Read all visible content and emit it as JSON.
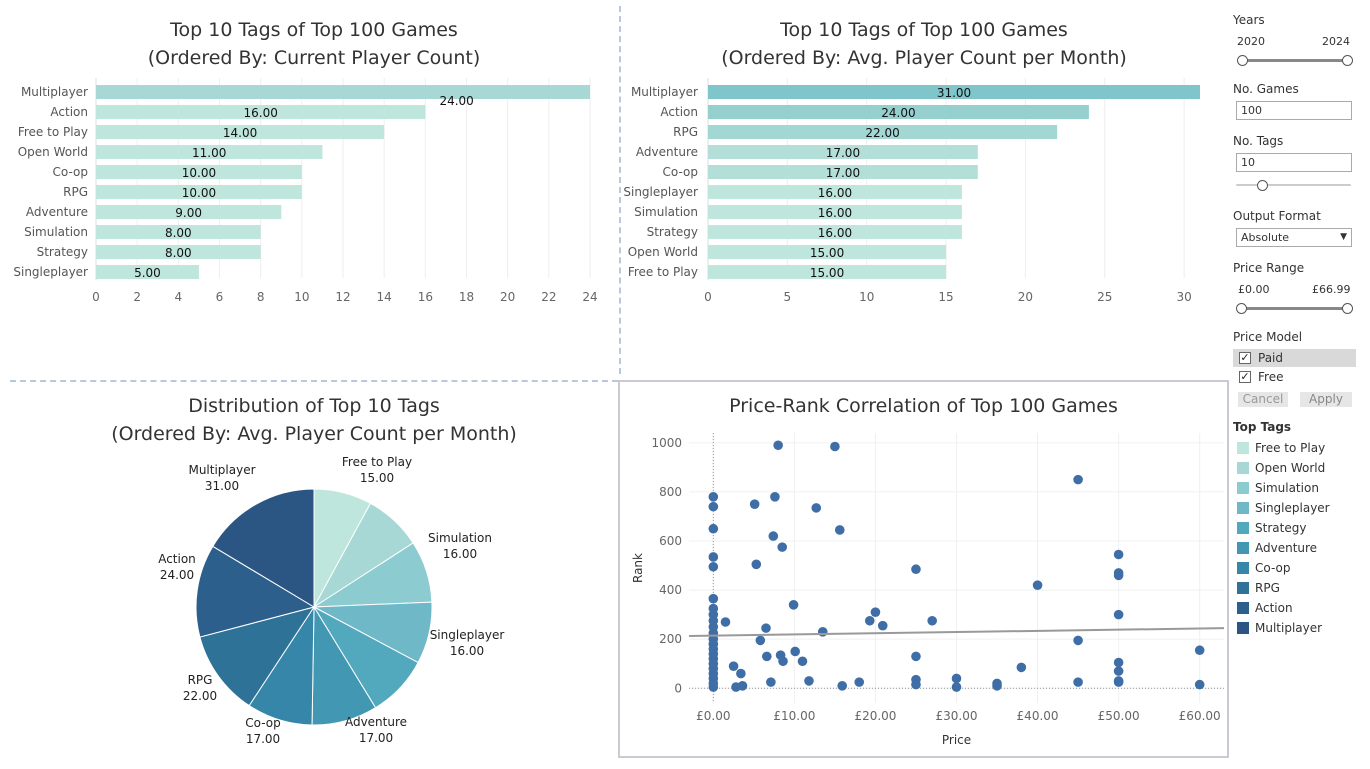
{
  "bar_chart_current": {
    "title_line1": "Top 10 Tags of Top 100 Games",
    "title_line2": "(Ordered By: Current Player Count)"
  },
  "bar_chart_avg": {
    "title_line1": "Top 10 Tags of Top 100 Games",
    "title_line2": "(Ordered By: Avg. Player Count per Month)"
  },
  "pie_chart": {
    "title_line1": "Distribution of Top 10 Tags",
    "title_line2": "(Ordered By: Avg. Player Count per Month)"
  },
  "scatter_chart": {
    "title": "Price-Rank Correlation of Top 100 Games"
  },
  "controls": {
    "years_label": "Years",
    "years_min": "2020",
    "years_max": "2024",
    "no_games_label": "No. Games",
    "no_games_value": "100",
    "no_tags_label": "No. Tags",
    "no_tags_value": "10",
    "no_tags_slider_fraction": 0.2,
    "output_format_label": "Output Format",
    "output_format_value": "Absolute",
    "price_range_label": "Price Range",
    "price_min": "£0.00",
    "price_max": "£66.99",
    "price_model_label": "Price Model",
    "price_model_options": [
      "Paid",
      "Free"
    ],
    "cancel_label": "Cancel",
    "apply_label": "Apply",
    "legend_title": "Top Tags",
    "legend": [
      {
        "label": "Free to Play",
        "color": "#bfe6dc"
      },
      {
        "label": "Open World",
        "color": "#a7d8d6"
      },
      {
        "label": "Simulation",
        "color": "#8ccbd0"
      },
      {
        "label": "Singleplayer",
        "color": "#6fb8c8"
      },
      {
        "label": "Strategy",
        "color": "#52a8bd"
      },
      {
        "label": "Adventure",
        "color": "#4298b2"
      },
      {
        "label": "Co-op",
        "color": "#3586a8"
      },
      {
        "label": "RPG",
        "color": "#2e7298"
      },
      {
        "label": "Action",
        "color": "#2d5f8c"
      },
      {
        "label": "Multiplayer",
        "color": "#2b5583"
      }
    ]
  },
  "chart_data": [
    {
      "type": "bar",
      "orientation": "horizontal",
      "title": "Top 10 Tags of Top 100 Games (Ordered By: Current Player Count)",
      "categories": [
        "Multiplayer",
        "Action",
        "Free to Play",
        "Open World",
        "Co-op",
        "RPG",
        "Adventure",
        "Simulation",
        "Strategy",
        "Singleplayer"
      ],
      "values": [
        24,
        16,
        14,
        11,
        10,
        10,
        9,
        8,
        8,
        5
      ],
      "value_labels": [
        "24.00",
        "16.00",
        "14.00",
        "11.00",
        "10.00",
        "10.00",
        "9.00",
        "8.00",
        "8.00",
        "5.00"
      ],
      "xlim": [
        0,
        24
      ],
      "xticks": [
        "0",
        "2",
        "4",
        "6",
        "8",
        "10",
        "12",
        "14",
        "16",
        "18",
        "20",
        "22",
        "24"
      ],
      "colors": [
        "#a7d8d6",
        "#bfe6dc",
        "#bfe6dc",
        "#bfe6dc",
        "#bfe6dc",
        "#bfe6dc",
        "#bfe6dc",
        "#bfe6dc",
        "#bfe6dc",
        "#bfe6dc"
      ],
      "grid": true
    },
    {
      "type": "bar",
      "orientation": "horizontal",
      "title": "Top 10 Tags of Top 100 Games (Ordered By: Avg. Player Count per Month)",
      "categories": [
        "Multiplayer",
        "Action",
        "RPG",
        "Adventure",
        "Co-op",
        "Singleplayer",
        "Simulation",
        "Strategy",
        "Open World",
        "Free to Play"
      ],
      "values": [
        31,
        24,
        22,
        17,
        17,
        16,
        16,
        16,
        15,
        15
      ],
      "value_labels": [
        "31.00",
        "24.00",
        "22.00",
        "17.00",
        "17.00",
        "16.00",
        "16.00",
        "16.00",
        "15.00",
        "15.00"
      ],
      "xlim": [
        0,
        31
      ],
      "xticks": [
        "0",
        "5",
        "10",
        "15",
        "20",
        "25",
        "30"
      ],
      "colors": [
        "#7fc5ca",
        "#95d0cf",
        "#a3d7d3",
        "#b4dfd8",
        "#b4dfd8",
        "#bfe6dc",
        "#bfe6dc",
        "#bfe6dc",
        "#bfe6dc",
        "#bfe6dc"
      ],
      "grid": true
    },
    {
      "type": "pie",
      "title": "Distribution of Top 10 Tags (Ordered By: Avg. Player Count per Month)",
      "labels": [
        "Free to Play",
        "Simulation",
        "Singleplayer",
        "Adventure",
        "Co-op",
        "RPG",
        "Action",
        "Multiplayer"
      ],
      "values": [
        15,
        16,
        16,
        17,
        17,
        22,
        24,
        31
      ],
      "value_labels": [
        "15.00",
        "16.00",
        "16.00",
        "17.00",
        "17.00",
        "22.00",
        "24.00",
        "31.00"
      ],
      "slices": [
        {
          "tag": "Free to Play",
          "value": 15,
          "color": "#bfe6dc",
          "labeled": true
        },
        {
          "tag": "Open World",
          "value": 15,
          "color": "#a7d8d6",
          "labeled": false
        },
        {
          "tag": "Simulation",
          "value": 16,
          "color": "#8ccbd0",
          "labeled": true
        },
        {
          "tag": "Singleplayer",
          "value": 16,
          "color": "#6fb8c8",
          "labeled": true
        },
        {
          "tag": "Strategy",
          "value": 16,
          "color": "#52a8bd",
          "labeled": false
        },
        {
          "tag": "Adventure",
          "value": 17,
          "color": "#4298b2",
          "labeled": true
        },
        {
          "tag": "Co-op",
          "value": 17,
          "color": "#3586a8",
          "labeled": true
        },
        {
          "tag": "RPG",
          "value": 22,
          "color": "#2e7298",
          "labeled": true
        },
        {
          "tag": "Action",
          "value": 24,
          "color": "#2d5f8c",
          "labeled": true
        },
        {
          "tag": "Multiplayer",
          "value": 31,
          "color": "#2b5583",
          "labeled": true
        }
      ]
    },
    {
      "type": "scatter",
      "title": "Price-Rank Correlation of Top 100 Games",
      "xlabel": "Price",
      "ylabel": "Rank",
      "xlim": [
        -3,
        63
      ],
      "ylim": [
        -60,
        1040
      ],
      "xticks": [
        "£0.00",
        "£10.00",
        "£20.00",
        "£30.00",
        "£40.00",
        "£50.00",
        "£60.00"
      ],
      "yticks": [
        "0",
        "200",
        "400",
        "600",
        "800",
        "1000"
      ],
      "point_color": "#3f6ea6",
      "trend_line": {
        "x": [
          -3,
          63
        ],
        "y": [
          213,
          245
        ],
        "color": "#999999"
      },
      "points": [
        {
          "x": 0,
          "y": 780
        },
        {
          "x": 0,
          "y": 740
        },
        {
          "x": 0,
          "y": 650
        },
        {
          "x": 0,
          "y": 535
        },
        {
          "x": 0,
          "y": 495
        },
        {
          "x": 0,
          "y": 365
        },
        {
          "x": 0,
          "y": 325
        },
        {
          "x": 0,
          "y": 300
        },
        {
          "x": 0,
          "y": 275
        },
        {
          "x": 0,
          "y": 250
        },
        {
          "x": 0,
          "y": 225
        },
        {
          "x": 0,
          "y": 200
        },
        {
          "x": 0,
          "y": 180
        },
        {
          "x": 0,
          "y": 160
        },
        {
          "x": 0,
          "y": 140
        },
        {
          "x": 0,
          "y": 120
        },
        {
          "x": 0,
          "y": 100
        },
        {
          "x": 0,
          "y": 80
        },
        {
          "x": 0,
          "y": 60
        },
        {
          "x": 0,
          "y": 40
        },
        {
          "x": 0,
          "y": 20
        },
        {
          "x": 0,
          "y": 5
        },
        {
          "x": 1.5,
          "y": 270
        },
        {
          "x": 2.5,
          "y": 90
        },
        {
          "x": 2.8,
          "y": 5
        },
        {
          "x": 3.4,
          "y": 60
        },
        {
          "x": 3.6,
          "y": 10
        },
        {
          "x": 5.1,
          "y": 750
        },
        {
          "x": 5.3,
          "y": 505
        },
        {
          "x": 5.8,
          "y": 195
        },
        {
          "x": 6.5,
          "y": 245
        },
        {
          "x": 6.6,
          "y": 130
        },
        {
          "x": 7.1,
          "y": 25
        },
        {
          "x": 7.4,
          "y": 620
        },
        {
          "x": 7.6,
          "y": 780
        },
        {
          "x": 8.0,
          "y": 990
        },
        {
          "x": 8.3,
          "y": 135
        },
        {
          "x": 8.5,
          "y": 575
        },
        {
          "x": 8.6,
          "y": 110
        },
        {
          "x": 9.9,
          "y": 340
        },
        {
          "x": 10.1,
          "y": 150
        },
        {
          "x": 11.0,
          "y": 110
        },
        {
          "x": 11.8,
          "y": 30
        },
        {
          "x": 12.7,
          "y": 735
        },
        {
          "x": 13.5,
          "y": 230
        },
        {
          "x": 15.0,
          "y": 985
        },
        {
          "x": 15.6,
          "y": 645
        },
        {
          "x": 15.9,
          "y": 10
        },
        {
          "x": 18.0,
          "y": 25
        },
        {
          "x": 19.3,
          "y": 275
        },
        {
          "x": 20.0,
          "y": 310
        },
        {
          "x": 20.9,
          "y": 255
        },
        {
          "x": 25.0,
          "y": 485
        },
        {
          "x": 25.0,
          "y": 130
        },
        {
          "x": 25.0,
          "y": 35
        },
        {
          "x": 25.0,
          "y": 15
        },
        {
          "x": 27.0,
          "y": 275
        },
        {
          "x": 30.0,
          "y": 40
        },
        {
          "x": 30.0,
          "y": 5
        },
        {
          "x": 35.0,
          "y": 20
        },
        {
          "x": 35.0,
          "y": 10
        },
        {
          "x": 38.0,
          "y": 85
        },
        {
          "x": 40.0,
          "y": 420
        },
        {
          "x": 45.0,
          "y": 850
        },
        {
          "x": 45.0,
          "y": 195
        },
        {
          "x": 45.0,
          "y": 25
        },
        {
          "x": 50.0,
          "y": 545
        },
        {
          "x": 50.0,
          "y": 470
        },
        {
          "x": 50.0,
          "y": 460
        },
        {
          "x": 50.0,
          "y": 300
        },
        {
          "x": 50.0,
          "y": 105
        },
        {
          "x": 50.0,
          "y": 70
        },
        {
          "x": 50.0,
          "y": 30
        },
        {
          "x": 50.0,
          "y": 25
        },
        {
          "x": 60.0,
          "y": 155
        },
        {
          "x": 60.0,
          "y": 15
        }
      ]
    }
  ]
}
